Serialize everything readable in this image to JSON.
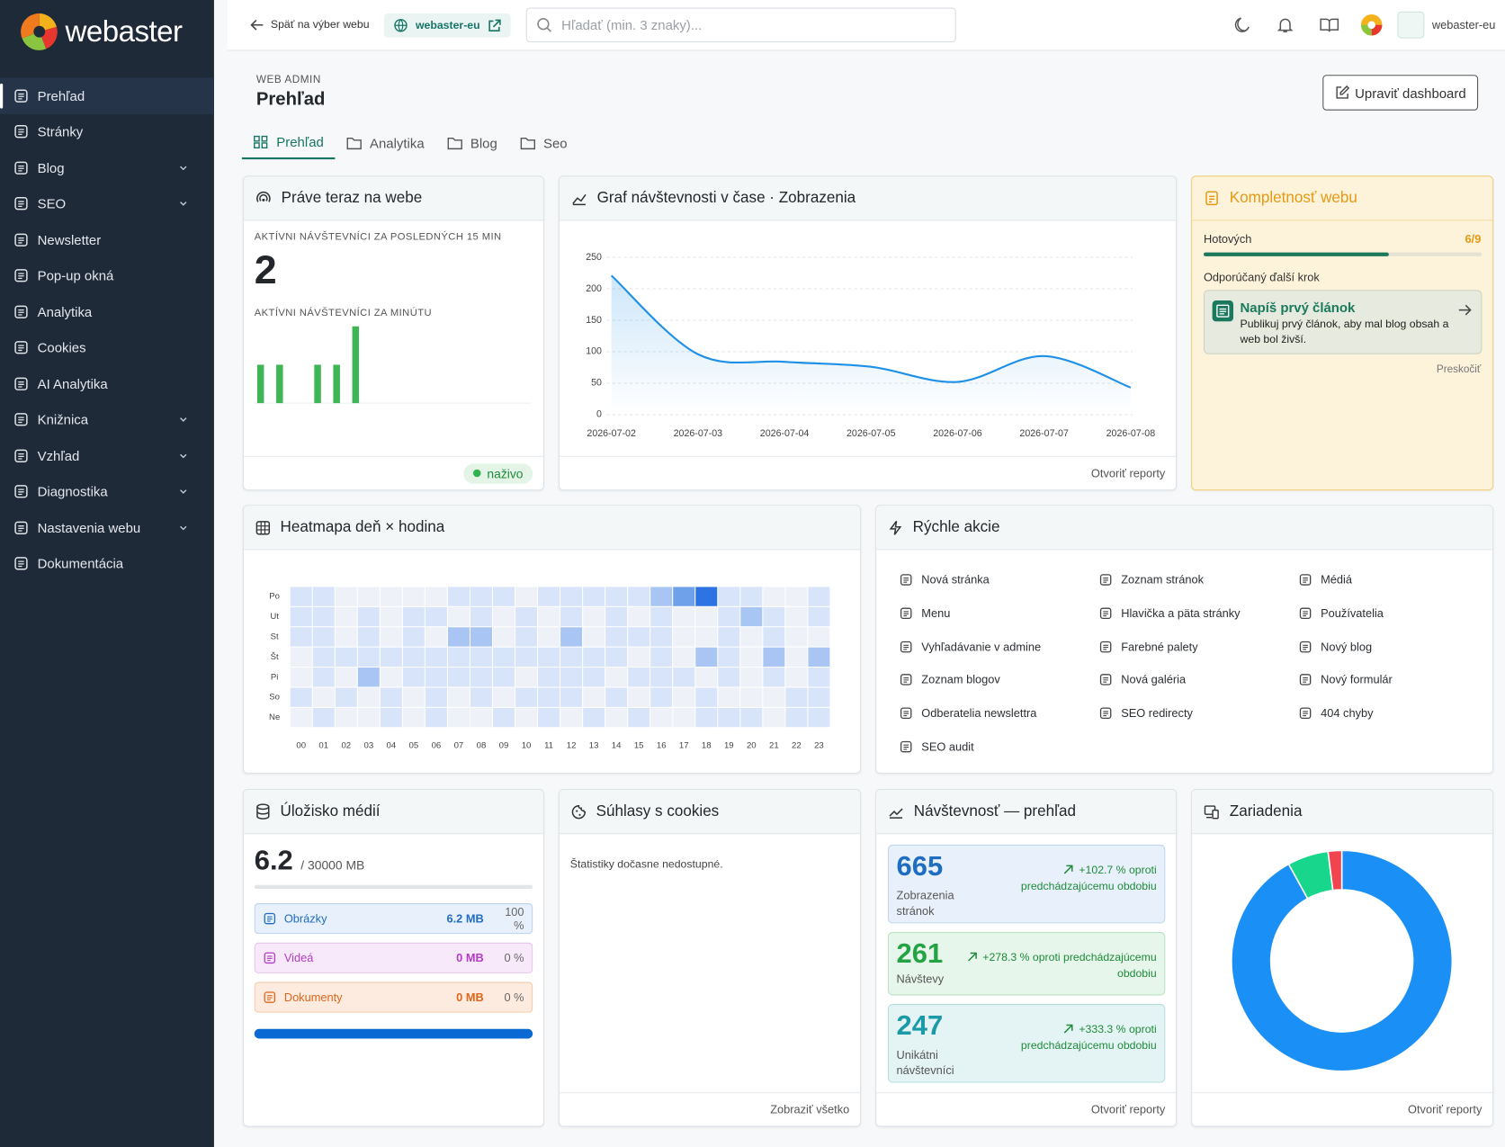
{
  "sidebar": {
    "logo": "webaster",
    "menu": [
      {
        "label": "Prehľad",
        "submenu": false
      },
      {
        "label": "Stránky",
        "submenu": false
      },
      {
        "label": "Blog",
        "submenu": true
      },
      {
        "label": "SEO",
        "submenu": true
      },
      {
        "label": "Newsletter",
        "submenu": false
      },
      {
        "label": "Pop-up okná",
        "submenu": false
      },
      {
        "label": "Analytika",
        "submenu": false
      },
      {
        "label": "Cookies",
        "submenu": false
      },
      {
        "label": "AI Analytika",
        "submenu": false
      },
      {
        "label": "Knižnica",
        "submenu": true
      },
      {
        "label": "Vzhľad",
        "submenu": true
      },
      {
        "label": "Diagnostika",
        "submenu": true
      },
      {
        "label": "Nastavenia webu",
        "submenu": true
      },
      {
        "label": "Dokumentácia",
        "submenu": false
      }
    ]
  },
  "topbar": {
    "back": "Späť na výber webu",
    "site": "webaster-eu",
    "search": "Hľadať (min. 3 znaky)...",
    "user": "webaster-eu"
  },
  "header": {
    "eyebrow": "WEB ADMIN",
    "title": "Prehľad",
    "button": "Upraviť dashboard",
    "tabs": [
      "Prehľad",
      "Analytika",
      "Blog",
      "Seo"
    ]
  },
  "live": {
    "title": "Práve teraz na webe",
    "label": "AKTÍVNI NÁVŠTEVNÍCI ZA POSLEDNÝCH 15 MIN",
    "count": 2,
    "status": "naživo"
  },
  "traffic": {
    "footer": "Otvoriť reporty"
  },
  "completeness": {
    "title": "Kompletnosť webu",
    "done_label": "Hotových",
    "progress": {
      "label": "6/9",
      "done": 6,
      "total": 9
    },
    "next_label": "Odporúčaný ďalší krok",
    "next_title": "Napíš prvý článok",
    "next_text": "Publikuj prvý článok, aby mal blog obsah a web bol živší.",
    "skip": "Preskočiť"
  },
  "quick": {
    "title": "Rýchle akcie",
    "items": [
      "Nová stránka",
      "Zoznam stránok",
      "Médiá",
      "Menu",
      "Hlavička a päta stránky",
      "Používatelia",
      "Vyhľadávanie v admine",
      "Farebné palety",
      "Nový blog",
      "Zoznam blogov",
      "Nová galéria",
      "Nový formulár",
      "Odberatelia newslettra",
      "SEO redirecty",
      "404 chyby",
      "SEO audit"
    ]
  },
  "storage": {
    "title": "Úložisko médií",
    "used": "6.2",
    "limit": "/ 30000 MB",
    "rows": [
      {
        "name": "Obrázky",
        "size": "6.2 MB",
        "share": "100 %"
      },
      {
        "name": "Videá",
        "size": "0 MB",
        "share": "0 %"
      },
      {
        "name": "Dokumenty",
        "size": "0 MB",
        "share": "0 %"
      }
    ]
  },
  "cookies": {
    "title": "Súhlasy s cookies",
    "text": "Štatistiky dočasne nedostupné.",
    "footer": "Zobraziť všetko"
  },
  "visits": {
    "title": "Návštevnosť — prehľad",
    "footer": "Otvoriť reporty",
    "boxes": [
      {
        "value": 665,
        "label": "Zobrazenia stránok",
        "change": "+102.7 % oproti predchádzajúcemu obdobiu"
      },
      {
        "value": 261,
        "label": "Návštevy",
        "change": "+278.3 % oproti predchádzajúcemu obdobiu"
      },
      {
        "value": 247,
        "label": "Unikátni návštevníci",
        "change": "+333.3 % oproti predchádzajúcemu obdobiu"
      }
    ]
  },
  "devices": {
    "footer": "Otvoriť reporty"
  },
  "chart_data": [
    {
      "type": "bar",
      "title": "AKTÍVNI NÁVŠTEVNÍCI ZA MINÚTU",
      "values": [
        1,
        1,
        0,
        1,
        1,
        2,
        0,
        0,
        0,
        0,
        0,
        0,
        0,
        0,
        0
      ],
      "color": "#3fb655"
    },
    {
      "type": "line",
      "title": "Graf návštevnosti v čase · Zobrazenia",
      "categories": [
        "2026-07-02",
        "2026-07-03",
        "2026-07-04",
        "2026-07-05",
        "2026-07-06",
        "2026-07-07",
        "2026-07-08"
      ],
      "values": [
        221,
        96,
        84,
        76,
        52,
        93,
        43
      ],
      "color": "#1e90e8",
      "ylim": [
        0,
        250
      ],
      "yticks": [
        0,
        50,
        100,
        150,
        200,
        250
      ],
      "grid": true
    },
    {
      "type": "heatmap",
      "title": "Heatmapa deň × hodina",
      "rows": [
        "Po",
        "Ut",
        "St",
        "Št",
        "Pi",
        "So",
        "Ne"
      ],
      "columns": [
        "00",
        "01",
        "02",
        "03",
        "04",
        "05",
        "06",
        "07",
        "08",
        "09",
        "10",
        "11",
        "12",
        "13",
        "14",
        "15",
        "16",
        "17",
        "18",
        "19",
        "20",
        "21",
        "22",
        "23"
      ],
      "values": [
        [
          1,
          1,
          0,
          0,
          0,
          0,
          0,
          1,
          1,
          1,
          0,
          1,
          1,
          1,
          1,
          1,
          2,
          3,
          4,
          1,
          1,
          0,
          0,
          1
        ],
        [
          1,
          1,
          0,
          1,
          0,
          1,
          1,
          0,
          1,
          0,
          1,
          0,
          1,
          0,
          1,
          0,
          1,
          0,
          0,
          1,
          2,
          1,
          0,
          1
        ],
        [
          1,
          1,
          0,
          1,
          0,
          1,
          0,
          2,
          2,
          0,
          1,
          0,
          2,
          0,
          1,
          1,
          1,
          0,
          0,
          1,
          0,
          1,
          0,
          0
        ],
        [
          0,
          1,
          1,
          1,
          1,
          1,
          1,
          1,
          1,
          1,
          1,
          1,
          1,
          1,
          1,
          0,
          1,
          0,
          2,
          1,
          0,
          2,
          0,
          2
        ],
        [
          0,
          1,
          0,
          2,
          0,
          1,
          1,
          1,
          1,
          1,
          0,
          1,
          1,
          1,
          0,
          1,
          1,
          1,
          0,
          1,
          0,
          1,
          0,
          1
        ],
        [
          1,
          0,
          1,
          0,
          1,
          0,
          1,
          0,
          1,
          0,
          1,
          1,
          1,
          0,
          1,
          0,
          1,
          0,
          1,
          0,
          0,
          0,
          1,
          1
        ],
        [
          0,
          1,
          0,
          0,
          1,
          0,
          1,
          0,
          0,
          1,
          0,
          1,
          0,
          1,
          0,
          1,
          0,
          0,
          1,
          1,
          1,
          0,
          1,
          1
        ]
      ],
      "colors": [
        "#eef2f8",
        "#d7e4fa",
        "#a9c5f4",
        "#6fa0ea",
        "#2e73e3"
      ]
    },
    {
      "type": "pie",
      "title": "Zariadenia",
      "values": [
        92,
        6,
        2
      ],
      "colors": [
        "#1a8ff5",
        "#18d68b",
        "#f0444f"
      ],
      "donut": true
    }
  ]
}
